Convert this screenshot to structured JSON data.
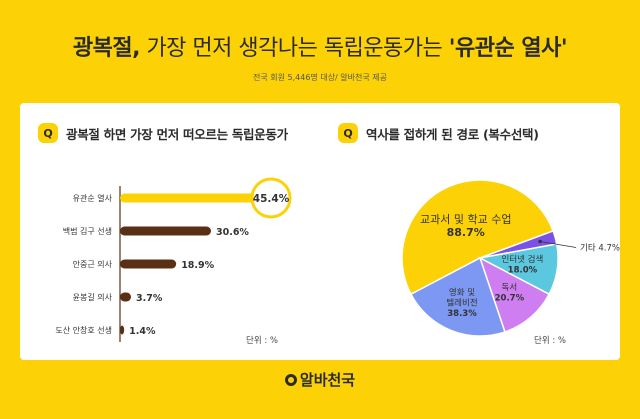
{
  "header": {
    "title_bold": "광복절,",
    "title_middle": "가장 먼저 생각나는 독립운동가는",
    "title_highlight": "'유관순 열사'",
    "subtitle": "전국 회원 5,446명 대상/ 알바천국 제공"
  },
  "left_panel": {
    "q_badge": "Q",
    "question": "광복절 하면 가장 먼저 떠오르는 독립운동가",
    "unit": "단위 : %"
  },
  "right_panel": {
    "q_badge": "Q",
    "question": "역사를 접하게 된 경로 (복수선택)",
    "unit": "단위 : %"
  },
  "logo": "알바천국",
  "colors": {
    "background": "#fcd207",
    "bar_highlight": "#fcd207",
    "bar_dark": "#5a3015"
  },
  "chart_data": [
    {
      "type": "bar",
      "orientation": "horizontal",
      "categories": [
        "유관순 열사",
        "백범 김구 선생",
        "안중근 의사",
        "윤봉길 의사",
        "도산 안창호 선생"
      ],
      "values": [
        45.4,
        30.6,
        18.9,
        3.7,
        1.4
      ],
      "value_labels": [
        "45.4%",
        "30.6%",
        "18.9%",
        "3.7%",
        "1.4%"
      ],
      "highlight_index": 0,
      "title": "광복절 하면 가장 먼저 떠오르는 독립운동가",
      "xlim": [
        0,
        50
      ]
    },
    {
      "type": "pie",
      "title": "역사를 접하게 된 경로 (복수선택)",
      "slices": [
        {
          "label": "교과서 및 학교 수업",
          "value": 88.7,
          "value_label": "88.7%",
          "color": "#fcd207"
        },
        {
          "label": "기타",
          "value": 4.7,
          "value_label": "4.7%",
          "color": "#7b52e6"
        },
        {
          "label": "인터넷 검색",
          "value": 18.0,
          "value_label": "18.0%",
          "color": "#5bc8e0"
        },
        {
          "label": "독서",
          "value": 20.7,
          "value_label": "20.7%",
          "color": "#cf7ef2"
        },
        {
          "label": "영화 및 텔레비전",
          "value": 38.3,
          "value_label": "38.3%",
          "color": "#7c98f2"
        }
      ]
    }
  ]
}
